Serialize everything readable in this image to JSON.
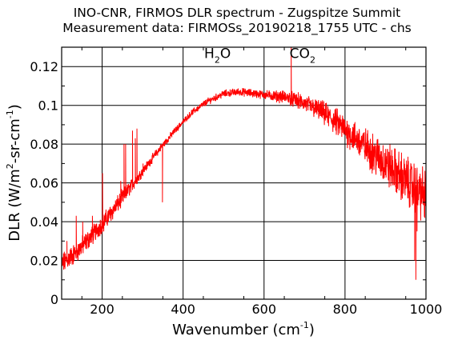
{
  "chart_data": {
    "type": "line",
    "title": "INO-CNR, FIRMOS DLR spectrum - Zugspitze Summit",
    "subtitle": "Measurement data: FIRMOSs_20190218_1755 UTC - chs",
    "xlabel": {
      "base": "Wavenumber (cm",
      "sup": "-1",
      "tail": ")"
    },
    "ylabel": {
      "base": "DLR (W/m",
      "sup1": "2",
      "mid": "-sr-cm",
      "sup2": "-1",
      "tail": ")"
    },
    "xlim": [
      100,
      1000
    ],
    "ylim": [
      0,
      0.13
    ],
    "x_ticks": [
      200,
      400,
      600,
      800,
      1000
    ],
    "y_ticks": [
      0,
      0.02,
      0.04,
      0.06,
      0.08,
      0.1,
      0.12
    ],
    "x_tick_labels": [
      "200",
      "400",
      "600",
      "800",
      "1000"
    ],
    "y_tick_labels": [
      "0",
      "0.02",
      "0.04",
      "0.06",
      "0.08",
      "0.1",
      "0.12"
    ],
    "grid": true,
    "series_color": "#ff0000",
    "annotations": [
      {
        "base": "H",
        "sub": "2",
        "tail": "O",
        "x": 485,
        "y": 0.1245
      },
      {
        "base": "CO",
        "sub": "2",
        "tail": "",
        "x": 695,
        "y": 0.1245
      }
    ],
    "envelope": {
      "x": [
        100,
        140,
        180,
        220,
        260,
        300,
        340,
        380,
        420,
        460,
        500,
        540,
        580,
        620,
        660,
        700,
        740,
        780,
        820,
        860,
        900,
        940,
        980,
        1000
      ],
      "y": [
        0.018,
        0.025,
        0.034,
        0.044,
        0.055,
        0.066,
        0.077,
        0.087,
        0.096,
        0.102,
        0.106,
        0.107,
        0.106,
        0.105,
        0.104,
        0.101,
        0.097,
        0.091,
        0.084,
        0.077,
        0.07,
        0.063,
        0.056,
        0.053
      ]
    },
    "noise": {
      "x": [
        100,
        250,
        300,
        400,
        500,
        600,
        700,
        800,
        900,
        1000
      ],
      "amplitude": [
        0.0045,
        0.0035,
        0.002,
        0.0012,
        0.0015,
        0.0018,
        0.0035,
        0.006,
        0.009,
        0.011
      ]
    },
    "spikes": [
      {
        "x": 113,
        "y": 0.03
      },
      {
        "x": 136,
        "y": 0.043
      },
      {
        "x": 152,
        "y": 0.04
      },
      {
        "x": 176,
        "y": 0.043
      },
      {
        "x": 201,
        "y": 0.065
      },
      {
        "x": 204,
        "y": 0.035
      },
      {
        "x": 223,
        "y": 0.045
      },
      {
        "x": 246,
        "y": 0.061
      },
      {
        "x": 254,
        "y": 0.08
      },
      {
        "x": 258,
        "y": 0.08
      },
      {
        "x": 275,
        "y": 0.087
      },
      {
        "x": 282,
        "y": 0.083
      },
      {
        "x": 286,
        "y": 0.088
      },
      {
        "x": 301,
        "y": 0.07
      },
      {
        "x": 349,
        "y": 0.05
      },
      {
        "x": 667,
        "y": 0.13
      },
      {
        "x": 668,
        "y": 0.1
      },
      {
        "x": 972,
        "y": 0.02
      },
      {
        "x": 975,
        "y": 0.01
      },
      {
        "x": 978,
        "y": 0.035
      }
    ]
  }
}
